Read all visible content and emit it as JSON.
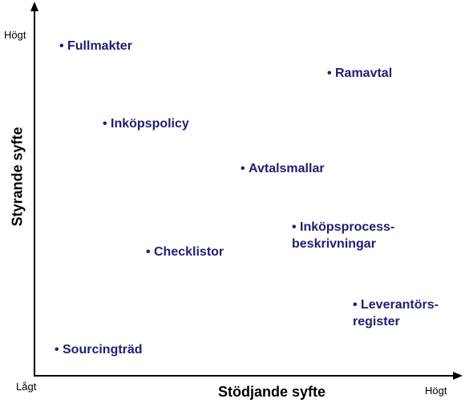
{
  "axes": {
    "x_title": "Stödjande syfte",
    "y_title": "Styrande syfte",
    "y_high": "Högt",
    "origin_low": "Lågt",
    "x_high": "Högt",
    "axis_color": "#000000"
  },
  "bullet": "•",
  "text_color": "#1f1f6e",
  "items": {
    "fullmakter": {
      "line1": "Fullmakter"
    },
    "ramavtal": {
      "line1": "Ramavtal"
    },
    "inkopspolicy": {
      "line1": "Inköpspolicy"
    },
    "avtalsmallar": {
      "line1": "Avtalsmallar"
    },
    "inkopsprocess": {
      "line1": "Inköpsprocess-",
      "line2": "beskrivningar"
    },
    "checklistor": {
      "line1": "Checklistor"
    },
    "leverantors": {
      "line1": "Leverantörs-",
      "line2": "register"
    },
    "sourcingtrad": {
      "line1": "Sourcingträd"
    }
  }
}
